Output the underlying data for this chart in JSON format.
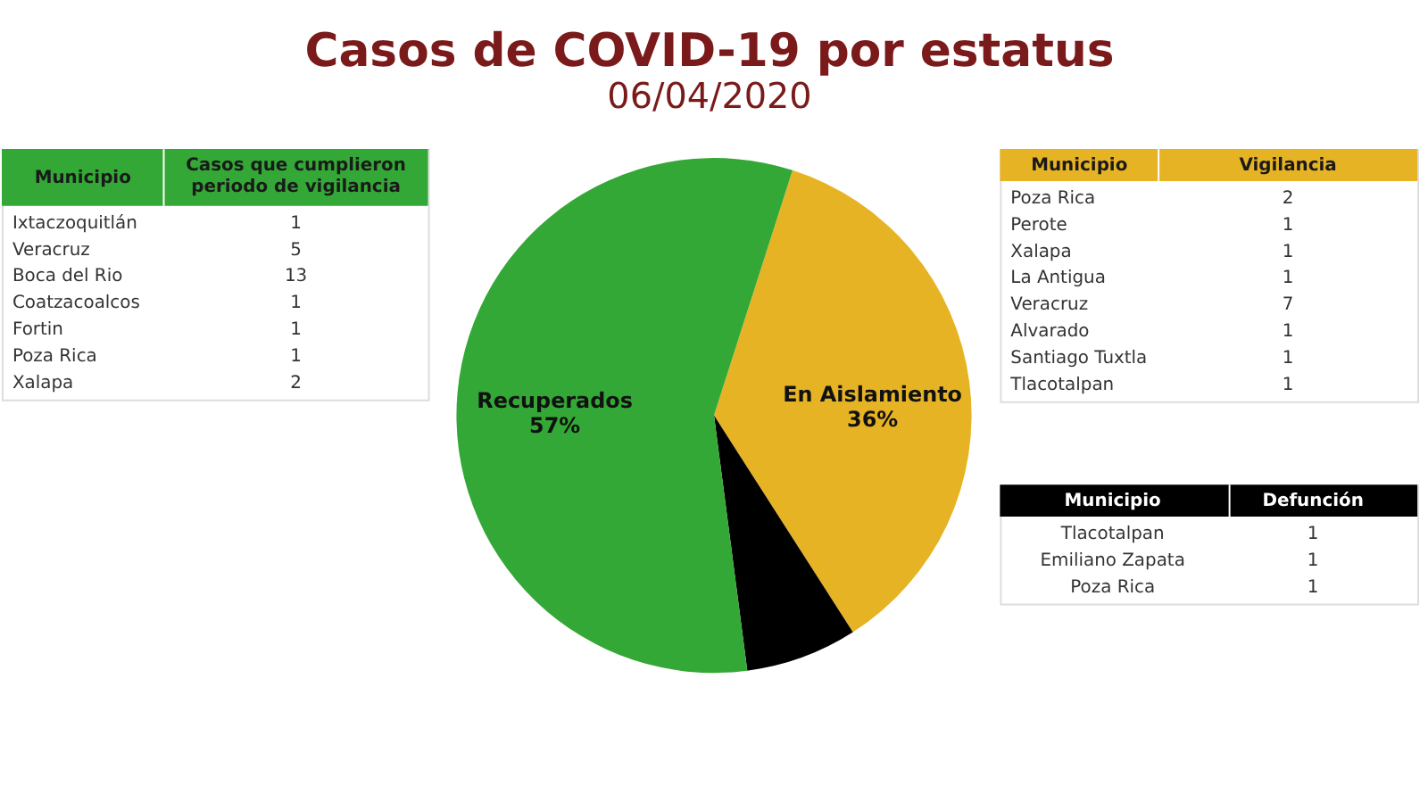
{
  "chart_data": [
    {
      "type": "pie",
      "title": "Casos de COVID-19 por estatus",
      "subtitle": "06/04/2020",
      "categories": [
        "En Aislamiento",
        null,
        "Recuperados"
      ],
      "values": [
        36,
        7,
        57
      ],
      "value_labels": [
        "36%",
        null,
        "57%"
      ],
      "colors": [
        "#e6b324",
        "#000000",
        "#34a836"
      ],
      "legend": false
    },
    {
      "type": "other",
      "xlabel": "Municipio",
      "ylabel": "Casos que cumplieron periodo de vigilancia",
      "color": "#34a836",
      "categories": [
        "Ixtaczoquitlán",
        "Veracruz",
        "Boca del Rio",
        "Coatzacoalcos",
        "Fortin",
        "Poza Rica",
        "Xalapa"
      ],
      "values": [
        1,
        5,
        13,
        1,
        1,
        1,
        2
      ],
      "data_labels": true
    },
    {
      "type": "other",
      "xlabel": "Municipio",
      "ylabel": "Vigilancia",
      "color": "#e6b324",
      "categories": [
        "Poza Rica",
        "Perote",
        "Xalapa",
        "La Antigua",
        "Veracruz",
        "Alvarado",
        "Santiago Tuxtla",
        "Tlacotalpan"
      ],
      "values": [
        2,
        1,
        1,
        1,
        7,
        1,
        1,
        1
      ],
      "data_labels": true
    },
    {
      "type": "other",
      "xlabel": "Municipio",
      "ylabel": "Defunción",
      "color": "#000000",
      "categories": [
        "Tlacotalpan",
        "Emiliano Zapata",
        "Poza Rica"
      ],
      "values": [
        1,
        1,
        1
      ],
      "data_labels": true
    }
  ]
}
